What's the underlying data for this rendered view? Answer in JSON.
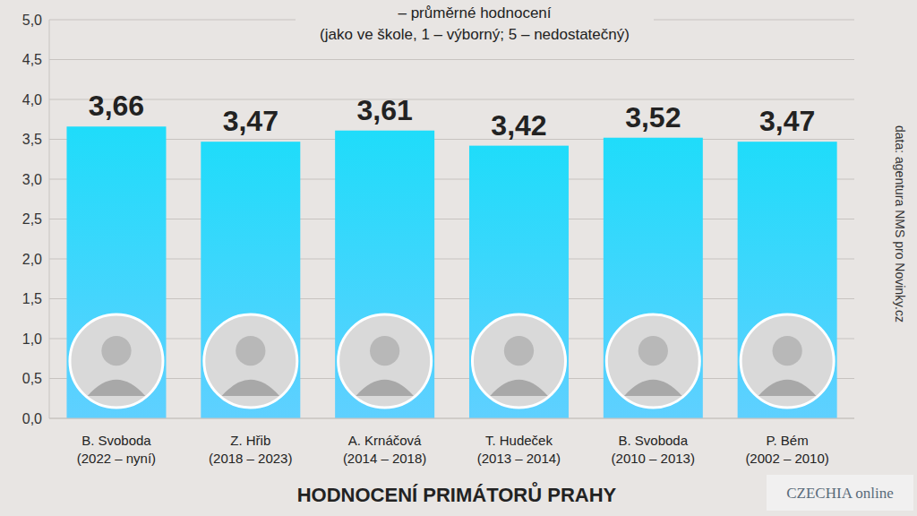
{
  "chart_data": {
    "type": "bar",
    "title": "HODNOCENÍ PRIMÁTORŮ PRAHY",
    "subtitle": [
      "– průměrné hodnocení",
      "(jako ve škole, 1 – výborný; 5 – nedostatečný)"
    ],
    "source": "data: agentura NMS pro Novinky.cz",
    "watermark": "CZECHIA online",
    "categories": [
      "B. Svoboda (2022 – nyní)",
      "Z. Hřib (2018 – 2023)",
      "A. Krnáčová (2014 – 2018)",
      "T. Hudeček (2013 – 2014)",
      "B. Svoboda (2010 – 2013)",
      "P. Bém (2002 – 2010)"
    ],
    "values": [
      3.66,
      3.47,
      3.61,
      3.42,
      3.52,
      3.47
    ],
    "value_labels": [
      "3,66",
      "3,47",
      "3,61",
      "3,42",
      "3,52",
      "3,47"
    ],
    "color": "#1fdcfa",
    "ylim": [
      0,
      5
    ],
    "yticks": [
      {
        "value": 0,
        "label": "0,0"
      },
      {
        "value": 0.5,
        "label": "0,5"
      },
      {
        "value": 1,
        "label": "1,0"
      },
      {
        "value": 1.5,
        "label": "1,5"
      },
      {
        "value": 2,
        "label": "2,0"
      },
      {
        "value": 2.5,
        "label": "2,5"
      },
      {
        "value": 3,
        "label": "3,0"
      },
      {
        "value": 3.5,
        "label": "3,5"
      },
      {
        "value": 4,
        "label": "4,0"
      },
      {
        "value": 4.5,
        "label": "4,5"
      },
      {
        "value": 5,
        "label": "5,0"
      }
    ],
    "grid": true,
    "data_labels": true
  }
}
